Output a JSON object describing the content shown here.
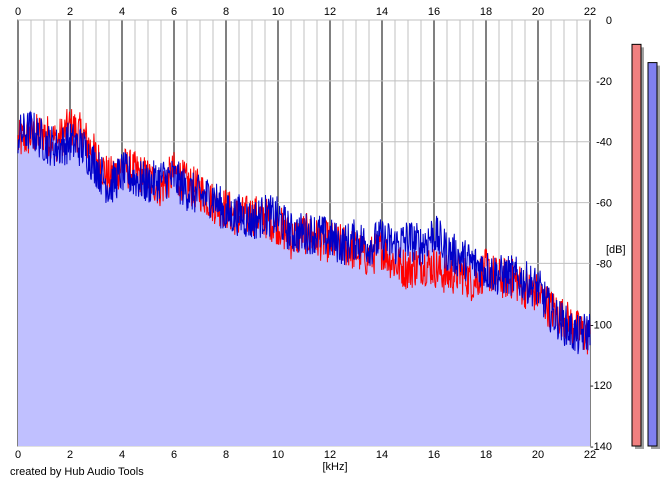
{
  "credit": "created by Hub Audio Tools",
  "colors": {
    "background": "#ffffff",
    "grid_minor": "#c0c0c0",
    "grid_major": "#808080",
    "area_fill": "#c0c0ff",
    "left_channel": "#ff0000",
    "right_channel": "#0000c8",
    "meter_left": "#f08080",
    "meter_right": "#8080f0"
  },
  "chart_data": {
    "type": "line",
    "title": "",
    "xlabel": "[kHz]",
    "ylabel": "[dB]",
    "xlim": [
      0,
      22
    ],
    "ylim": [
      -140,
      0
    ],
    "x_ticks": [
      "0",
      "2",
      "4",
      "6",
      "8",
      "10",
      "12",
      "14",
      "16",
      "18",
      "20",
      "22"
    ],
    "y_ticks": [
      "0",
      "-20",
      "-40",
      "-60",
      "-80",
      "-100",
      "-120",
      "-140"
    ],
    "grid": true,
    "x": [
      0,
      0.5,
      1,
      1.5,
      2,
      2.5,
      3,
      3.5,
      4,
      4.5,
      5,
      5.5,
      6,
      6.5,
      7,
      7.5,
      8,
      8.5,
      9,
      9.5,
      10,
      10.5,
      11,
      11.5,
      12,
      12.5,
      13,
      13.5,
      14,
      14.5,
      15,
      15.5,
      16,
      16.5,
      17,
      17.5,
      18,
      18.5,
      19,
      19.5,
      20,
      20.5,
      21,
      21.5,
      22
    ],
    "series": [
      {
        "color": "#ff0000",
        "values": [
          -40,
          -38,
          -37,
          -40,
          -35,
          -38,
          -45,
          -52,
          -48,
          -50,
          -52,
          -55,
          -50,
          -54,
          -56,
          -60,
          -62,
          -65,
          -64,
          -65,
          -67,
          -72,
          -70,
          -72,
          -73,
          -74,
          -76,
          -78,
          -75,
          -80,
          -82,
          -80,
          -81,
          -84,
          -83,
          -86,
          -82,
          -85,
          -85,
          -88,
          -90,
          -95,
          -98,
          -102,
          -104
        ]
      },
      {
        "color": "#0000c8",
        "values": [
          -38,
          -36,
          -40,
          -42,
          -40,
          -42,
          -48,
          -55,
          -50,
          -52,
          -54,
          -52,
          -52,
          -56,
          -58,
          -58,
          -64,
          -64,
          -66,
          -64,
          -65,
          -70,
          -70,
          -70,
          -72,
          -74,
          -72,
          -74,
          -72,
          -74,
          -72,
          -74,
          -70,
          -76,
          -78,
          -80,
          -82,
          -84,
          -84,
          -86,
          -88,
          -96,
          -100,
          -104,
          -102
        ]
      }
    ],
    "level_meters": [
      {
        "color": "#f08080",
        "value": -8
      },
      {
        "color": "#8080f0",
        "value": -14
      }
    ]
  }
}
